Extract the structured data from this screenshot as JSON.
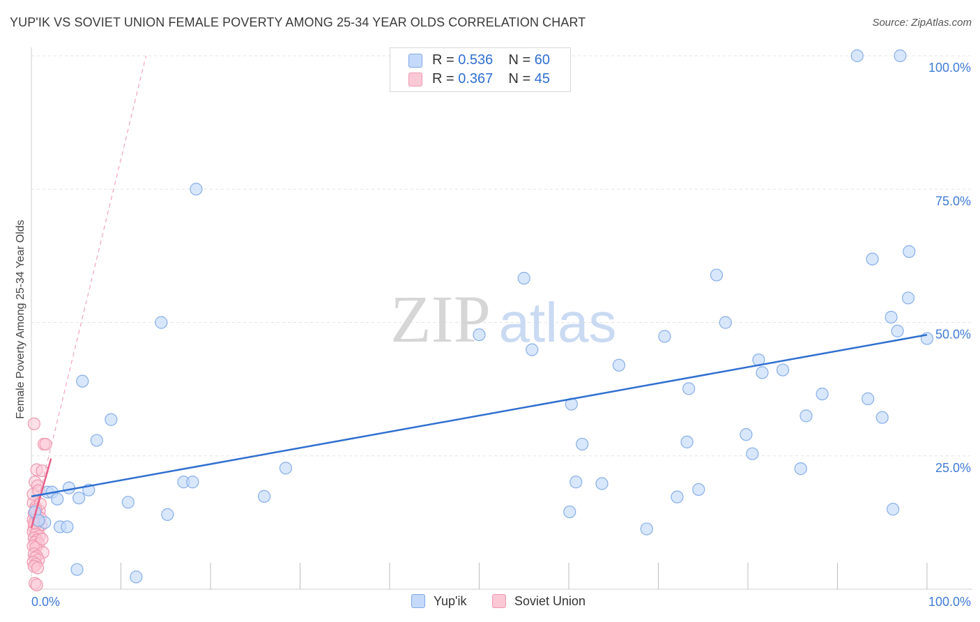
{
  "title": "YUP'IK VS SOVIET UNION FEMALE POVERTY AMONG 25-34 YEAR OLDS CORRELATION CHART",
  "source": "Source: ZipAtlas.com",
  "watermark": {
    "zip": "ZIP",
    "atlas": "atlas"
  },
  "legend_top": [
    {
      "r_label": "R =",
      "r_value": "0.536",
      "n_label": "N =",
      "n_value": "60"
    },
    {
      "r_label": "R =",
      "r_value": "0.367",
      "n_label": "N =",
      "n_value": "45"
    }
  ],
  "legend_bottom": [
    "Yup'ik",
    "Soviet Union"
  ],
  "colors": {
    "blue": "#2f6fd0",
    "blue_fill": "#c5dafa",
    "pink": "#e8608a",
    "pink_fill": "#fbc8d6",
    "grid": "#e3e3e3"
  },
  "chart_data": {
    "type": "scatter",
    "title": "YUP'IK VS SOVIET UNION FEMALE POVERTY AMONG 25-34 YEAR OLDS CORRELATION CHART",
    "xlabel": "",
    "ylabel": "Female Poverty Among 25-34 Year Olds",
    "xlim": [
      0,
      100
    ],
    "ylim": [
      0,
      100
    ],
    "x_tick_labels": [
      "0.0%",
      "100.0%"
    ],
    "y_tick_labels": [
      "25.0%",
      "50.0%",
      "75.0%",
      "100.0%"
    ],
    "y_ticks": [
      25,
      50,
      75,
      100
    ],
    "series": [
      {
        "name": "Yup'ik",
        "color": "#2f6fd0",
        "R": 0.536,
        "N": 60,
        "trend": {
          "x": [
            0,
            100
          ],
          "y": [
            17.4,
            47.7
          ]
        },
        "points": [
          [
            0.4,
            14.5
          ],
          [
            1.5,
            12.5
          ],
          [
            1.8,
            18.2
          ],
          [
            2.3,
            18.2
          ],
          [
            2.9,
            16.9
          ],
          [
            3.2,
            11.7
          ],
          [
            4.0,
            11.7
          ],
          [
            4.2,
            19.0
          ],
          [
            5.1,
            3.7
          ],
          [
            5.3,
            17.1
          ],
          [
            5.7,
            39.0
          ],
          [
            6.4,
            18.6
          ],
          [
            7.3,
            27.9
          ],
          [
            8.9,
            31.8
          ],
          [
            10.8,
            16.3
          ],
          [
            11.7,
            2.3
          ],
          [
            14.5,
            50.0
          ],
          [
            15.2,
            14.0
          ],
          [
            17.0,
            20.1
          ],
          [
            18.0,
            20.1
          ],
          [
            18.4,
            75.0
          ],
          [
            26.0,
            17.4
          ],
          [
            28.4,
            22.7
          ],
          [
            50.0,
            47.7
          ],
          [
            55.0,
            58.3
          ],
          [
            55.9,
            44.9
          ],
          [
            60.1,
            14.5
          ],
          [
            60.3,
            34.7
          ],
          [
            60.8,
            20.1
          ],
          [
            61.5,
            27.2
          ],
          [
            63.7,
            19.8
          ],
          [
            65.6,
            42.0
          ],
          [
            68.7,
            11.3
          ],
          [
            70.7,
            47.4
          ],
          [
            72.1,
            17.3
          ],
          [
            73.2,
            27.6
          ],
          [
            73.4,
            37.6
          ],
          [
            74.5,
            18.7
          ],
          [
            76.5,
            58.9
          ],
          [
            77.5,
            50.0
          ],
          [
            79.8,
            29.0
          ],
          [
            80.5,
            25.4
          ],
          [
            81.2,
            43.0
          ],
          [
            81.6,
            40.6
          ],
          [
            83.9,
            41.1
          ],
          [
            85.9,
            22.6
          ],
          [
            86.5,
            32.5
          ],
          [
            88.3,
            36.6
          ],
          [
            92.2,
            100.0
          ],
          [
            93.4,
            35.7
          ],
          [
            93.9,
            61.9
          ],
          [
            95.0,
            32.2
          ],
          [
            96.0,
            51.0
          ],
          [
            96.2,
            15.0
          ],
          [
            96.7,
            48.4
          ],
          [
            97.0,
            100.0
          ],
          [
            97.9,
            54.6
          ],
          [
            98.0,
            63.3
          ],
          [
            100.0,
            47.0
          ],
          [
            0.8,
            12.9
          ]
        ]
      },
      {
        "name": "Soviet Union",
        "color": "#e8608a",
        "R": 0.367,
        "N": 45,
        "trend_solid": {
          "x": [
            0,
            2.2
          ],
          "y": [
            11.5,
            24.5
          ]
        },
        "trend_dashed": {
          "x": [
            0,
            12.8
          ],
          "y": [
            11.5,
            100.0
          ]
        },
        "points": [
          [
            0.3,
            31.0
          ],
          [
            1.4,
            27.2
          ],
          [
            1.6,
            27.2
          ],
          [
            0.6,
            22.4
          ],
          [
            1.2,
            22.2
          ],
          [
            0.4,
            20.1
          ],
          [
            0.7,
            19.4
          ],
          [
            0.2,
            16.2
          ],
          [
            0.5,
            15.4
          ],
          [
            0.9,
            14.7
          ],
          [
            0.3,
            14.2
          ],
          [
            0.6,
            13.8
          ],
          [
            1.0,
            13.4
          ],
          [
            0.2,
            13.0
          ],
          [
            0.8,
            12.6
          ],
          [
            0.4,
            12.2
          ],
          [
            1.1,
            12.0
          ],
          [
            0.3,
            11.6
          ],
          [
            0.7,
            11.2
          ],
          [
            0.2,
            10.8
          ],
          [
            0.5,
            10.4
          ],
          [
            0.9,
            10.0
          ],
          [
            0.3,
            9.6
          ],
          [
            0.6,
            9.2
          ],
          [
            0.4,
            8.8
          ],
          [
            0.8,
            8.5
          ],
          [
            0.2,
            8.1
          ],
          [
            0.5,
            7.8
          ],
          [
            1.3,
            6.9
          ],
          [
            0.3,
            6.6
          ],
          [
            0.6,
            6.2
          ],
          [
            0.4,
            5.9
          ],
          [
            0.8,
            5.5
          ],
          [
            0.2,
            5.1
          ],
          [
            0.5,
            4.7
          ],
          [
            0.3,
            4.3
          ],
          [
            0.7,
            4.0
          ],
          [
            0.4,
            1.1
          ],
          [
            0.6,
            0.8
          ],
          [
            1.0,
            16.0
          ],
          [
            0.2,
            17.8
          ],
          [
            0.8,
            18.5
          ],
          [
            0.5,
            14.9
          ],
          [
            1.2,
            9.4
          ],
          [
            0.3,
            12.4
          ]
        ]
      }
    ]
  }
}
